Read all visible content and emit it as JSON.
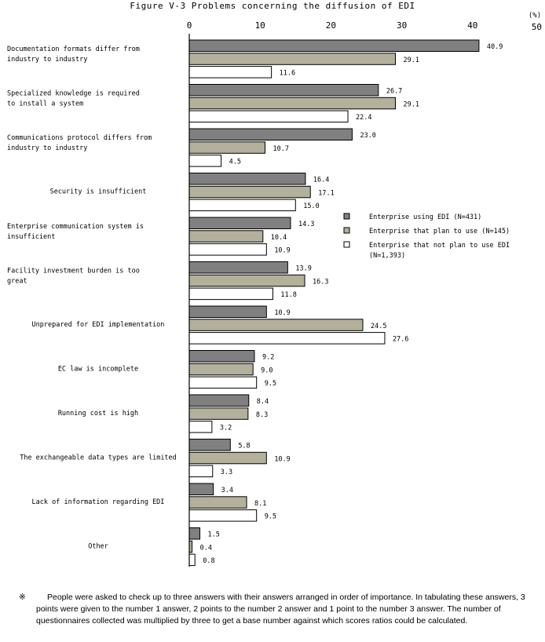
{
  "chart_data": {
    "type": "bar",
    "orientation": "horizontal",
    "title": "Figure V-3 Problems concerning the diffusion of EDI",
    "unit": "(%)",
    "xlim": [
      0,
      50
    ],
    "ticks": [
      "0",
      "10",
      "20",
      "30",
      "40",
      "50"
    ],
    "grid": false,
    "legend_position": "right-middle",
    "categories": [
      [
        "Documentation formats differ from",
        "industry to industry"
      ],
      [
        "Specialized knowledge is required",
        "to install a system"
      ],
      [
        "Communications protocol differs from",
        "industry to industry"
      ],
      [
        "Security is insufficient"
      ],
      [
        "Enterprise communication system is",
        "insufficient"
      ],
      [
        "Facility investment burden is too",
        "great"
      ],
      [
        "Unprepared for EDI implementation"
      ],
      [
        "EC law is incomplete"
      ],
      [
        "Running cost is high"
      ],
      [
        "The exchangeable data types are limited"
      ],
      [
        "Lack of information regarding EDI"
      ],
      [
        "Other"
      ]
    ],
    "series": [
      {
        "name": "Enterprise using EDI (N=431)",
        "color": "#808080",
        "values": [
          40.9,
          26.7,
          23.0,
          16.4,
          14.3,
          13.9,
          10.9,
          9.2,
          8.4,
          5.8,
          3.4,
          1.5
        ]
      },
      {
        "name": "Enterprise that plan to use (N=145)",
        "color": "#b3b09b",
        "values": [
          29.1,
          29.1,
          10.7,
          17.1,
          10.4,
          16.3,
          24.5,
          9.0,
          8.3,
          10.9,
          8.1,
          0.4
        ]
      },
      {
        "name": [
          "Enterprise that not plan to use EDI",
          "(N=1,393)"
        ],
        "color": "#ffffff",
        "values": [
          11.6,
          22.4,
          4.5,
          15.0,
          10.9,
          11.8,
          27.6,
          9.5,
          3.2,
          3.3,
          9.5,
          0.8
        ]
      }
    ]
  },
  "footnote": {
    "mark": "※",
    "text": "People were asked to check up to three answers with their answers arranged in order of importance. In tabulating these answers, 3 points were given to the number 1 answer, 2 points to the number 2 answer and 1 point to the number 3 answer. The number of questionnaires collected was multiplied by three to get a base number against which scores ratios could be calculated."
  }
}
